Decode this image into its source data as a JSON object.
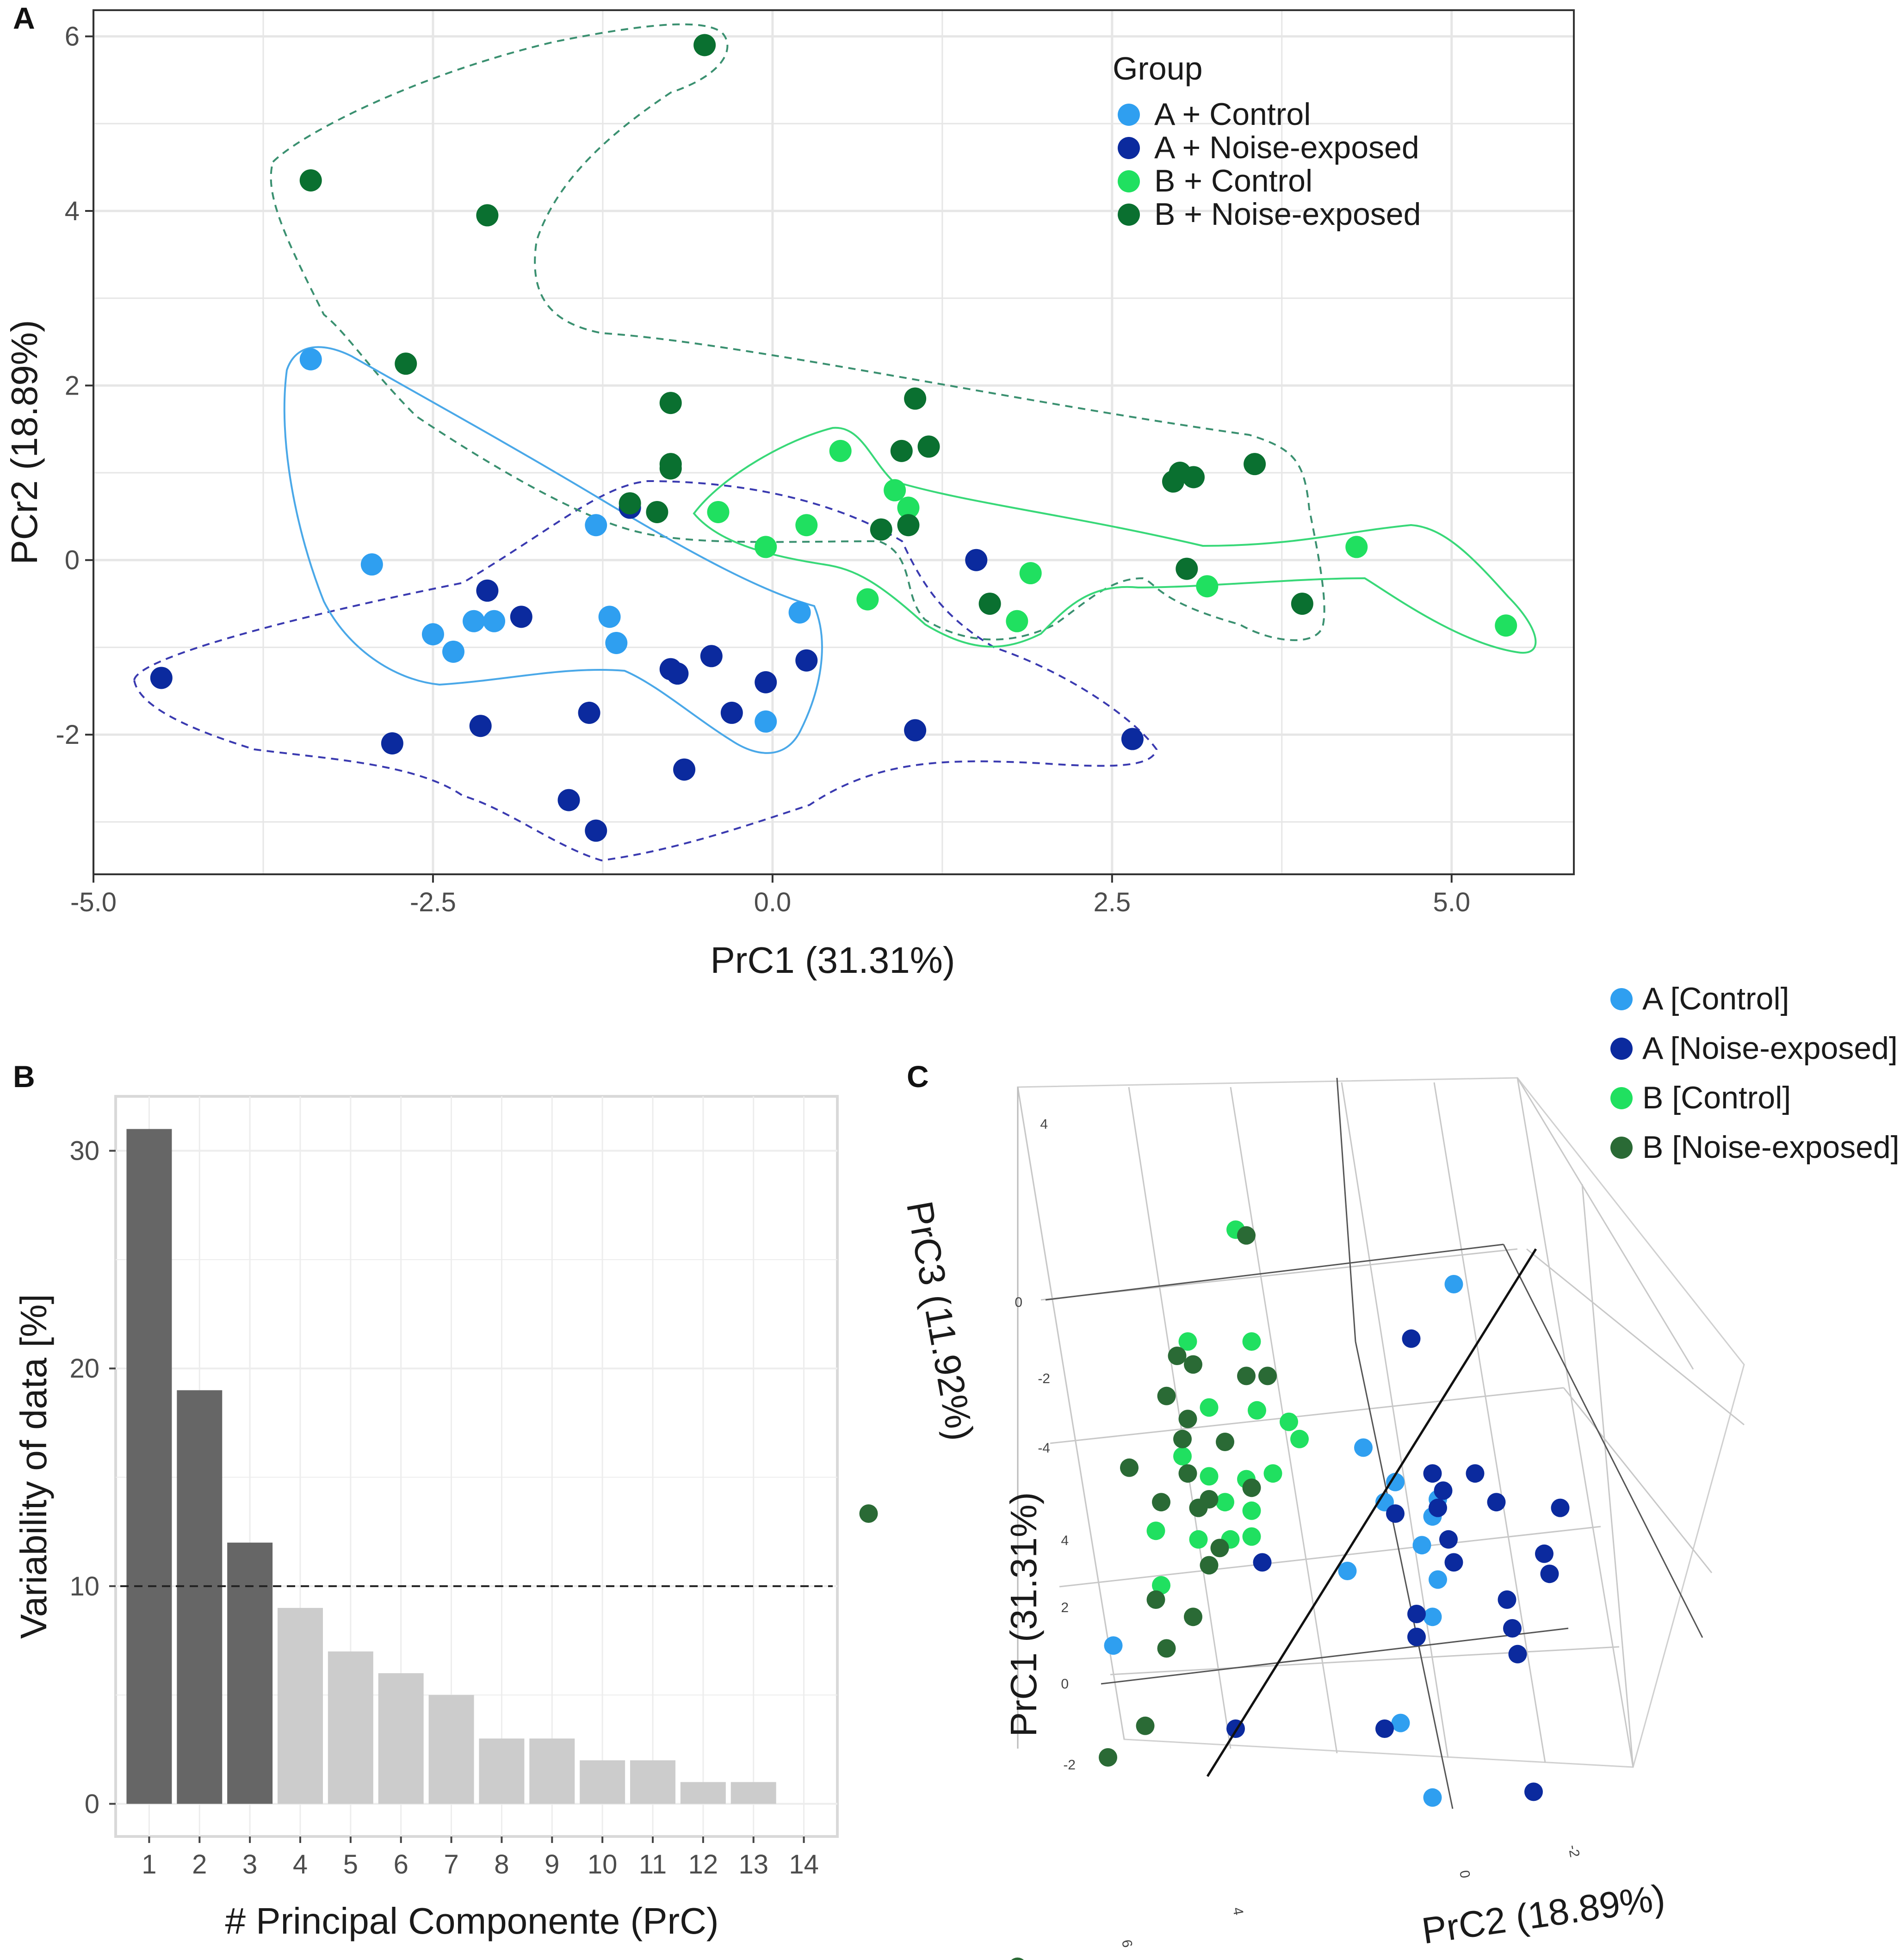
{
  "colors": {
    "a_control": "#2f9ff0",
    "a_noise": "#0b2a9e",
    "b_control": "#20e060",
    "b_noise": "#0a7030",
    "b_noise_3d": "#2a6a35",
    "bar_selected": "#666666",
    "bar_rest": "#cccccc",
    "grid": "#e6e6e6",
    "frame": "#333333"
  },
  "chart_data": [
    {
      "panel": "A",
      "type": "scatter",
      "xlabel": "PrC1 (31.31%)",
      "ylabel": "PCr2 (18.89%)",
      "xlim": [
        -5.0,
        5.9
      ],
      "ylim": [
        -3.6,
        6.3
      ],
      "xticks": [
        -5.0,
        -2.5,
        0.0,
        2.5,
        5.0
      ],
      "xtick_labels": [
        "-5.0",
        "-2.5",
        "0.0",
        "2.5",
        "5.0"
      ],
      "yticks": [
        -2,
        0,
        2,
        4,
        6
      ],
      "ytick_labels": [
        "-2",
        "0",
        "2",
        "4",
        "6"
      ],
      "legend_title": "Group",
      "legend_position": "top-right",
      "series": [
        {
          "name": "A + Control",
          "color_key": "a_control",
          "hull": "solid",
          "points": [
            [
              -3.4,
              2.3
            ],
            [
              -2.95,
              -0.05
            ],
            [
              -2.5,
              -0.85
            ],
            [
              -2.35,
              -1.05
            ],
            [
              -2.2,
              -0.7
            ],
            [
              -2.05,
              -0.7
            ],
            [
              -1.3,
              0.4
            ],
            [
              -1.2,
              -0.65
            ],
            [
              -1.15,
              -0.95
            ],
            [
              -0.05,
              -1.85
            ],
            [
              0.2,
              -0.6
            ]
          ]
        },
        {
          "name": "A + Noise-exposed",
          "color_key": "a_noise",
          "hull": "dashed",
          "points": [
            [
              -4.5,
              -1.35
            ],
            [
              -2.8,
              -2.1
            ],
            [
              -2.15,
              -1.9
            ],
            [
              -2.1,
              -0.35
            ],
            [
              -1.85,
              -0.65
            ],
            [
              -1.5,
              -2.75
            ],
            [
              -1.35,
              -1.75
            ],
            [
              -1.3,
              -3.1
            ],
            [
              -1.05,
              0.6
            ],
            [
              -0.75,
              -1.25
            ],
            [
              -0.7,
              -1.3
            ],
            [
              -0.65,
              -2.4
            ],
            [
              -0.45,
              -1.1
            ],
            [
              -0.3,
              -1.75
            ],
            [
              -0.05,
              -1.4
            ],
            [
              0.25,
              -1.15
            ],
            [
              1.05,
              -1.95
            ],
            [
              1.5,
              0.0
            ],
            [
              2.65,
              -2.05
            ]
          ]
        },
        {
          "name": "B + Control",
          "color_key": "b_control",
          "hull": "solid",
          "points": [
            [
              -0.4,
              0.55
            ],
            [
              -0.05,
              0.15
            ],
            [
              0.25,
              0.4
            ],
            [
              0.5,
              1.25
            ],
            [
              0.7,
              -0.45
            ],
            [
              0.9,
              0.8
            ],
            [
              1.0,
              0.6
            ],
            [
              1.8,
              -0.7
            ],
            [
              1.9,
              -0.15
            ],
            [
              3.2,
              -0.3
            ],
            [
              4.3,
              0.15
            ],
            [
              5.4,
              -0.75
            ]
          ]
        },
        {
          "name": "B + Noise-exposed",
          "color_key": "b_noise",
          "hull": "dashed",
          "points": [
            [
              -3.4,
              4.35
            ],
            [
              -2.1,
              3.95
            ],
            [
              -2.7,
              2.25
            ],
            [
              -0.5,
              5.9
            ],
            [
              -0.75,
              1.8
            ],
            [
              -0.75,
              1.05
            ],
            [
              -0.75,
              1.1
            ],
            [
              -1.05,
              0.65
            ],
            [
              -0.85,
              0.55
            ],
            [
              0.8,
              0.35
            ],
            [
              0.95,
              1.25
            ],
            [
              1.0,
              0.4
            ],
            [
              1.05,
              1.85
            ],
            [
              1.15,
              1.3
            ],
            [
              1.6,
              -0.5
            ],
            [
              2.95,
              0.9
            ],
            [
              3.0,
              1.0
            ],
            [
              3.05,
              -0.1
            ],
            [
              3.1,
              0.95
            ],
            [
              3.55,
              1.1
            ],
            [
              3.9,
              -0.5
            ]
          ]
        }
      ]
    },
    {
      "panel": "B",
      "type": "bar",
      "xlabel": "# Principal Componente (PrC)",
      "ylabel": "Variability of data [%]",
      "categories": [
        "1",
        "2",
        "3",
        "4",
        "5",
        "6",
        "7",
        "8",
        "9",
        "10",
        "11",
        "12",
        "13",
        "14"
      ],
      "values": [
        31,
        19,
        12,
        9,
        7,
        6,
        5,
        3,
        3,
        2,
        2,
        1,
        1,
        0
      ],
      "highlighted_count": 3,
      "ylim": [
        -1.5,
        32.5
      ],
      "yticks": [
        0,
        10,
        20,
        30
      ],
      "ytick_labels": [
        "0",
        "10",
        "20",
        "30"
      ],
      "reference_line": 10
    },
    {
      "panel": "C",
      "type": "scatter",
      "projection": "3d",
      "xlabel": "PrC2 (18.89%)",
      "ylabel": "PrC1 (31.31%)",
      "zlabel": "PrC3 (11.92%)",
      "z_tick_labels": [
        "4",
        "0",
        "-2",
        "-4"
      ],
      "y_tick_labels": [
        "4",
        "2",
        "0",
        "-2"
      ],
      "x_tick_labels": [
        "6",
        "4",
        "0",
        "-2"
      ],
      "legend_position": "top-right",
      "legend": [
        "A [Control]",
        "A [Noise-exposed]",
        "B [Control]",
        "B [Noise-exposed]"
      ],
      "series": [
        {
          "name": "A [Control]",
          "color_key": "a_control",
          "points": [
            [
              0.75,
              0.2
            ],
            [
              0.58,
              -0.37
            ],
            [
              0.64,
              -0.49
            ],
            [
              0.62,
              -0.56
            ],
            [
              0.69,
              -0.71
            ],
            [
              0.72,
              -0.55
            ],
            [
              0.71,
              -0.61
            ],
            [
              0.72,
              -0.83
            ],
            [
              0.55,
              -0.8
            ],
            [
              0.71,
              -0.96
            ],
            [
              0.11,
              -1.06
            ],
            [
              0.71,
              -1.59
            ],
            [
              0.65,
              -1.33
            ]
          ]
        },
        {
          "name": "A [Noise-exposed]",
          "color_key": "a_noise",
          "points": [
            [
              0.67,
              0.01
            ],
            [
              0.71,
              -0.46
            ],
            [
              0.73,
              -0.52
            ],
            [
              0.79,
              -0.46
            ],
            [
              0.72,
              -0.58
            ],
            [
              0.83,
              -0.56
            ],
            [
              0.64,
              -0.6
            ],
            [
              0.95,
              -0.58
            ],
            [
              0.92,
              -0.74
            ],
            [
              0.93,
              -0.81
            ],
            [
              0.74,
              -0.69
            ],
            [
              0.75,
              -0.77
            ],
            [
              0.85,
              -0.9
            ],
            [
              0.68,
              -0.95
            ],
            [
              0.86,
              -1.0
            ],
            [
              0.68,
              -1.03
            ],
            [
              0.87,
              -1.09
            ],
            [
              0.34,
              -1.35
            ],
            [
              0.62,
              -1.35
            ],
            [
              0.9,
              -1.57
            ],
            [
              0.39,
              -0.77
            ]
          ]
        },
        {
          "name": "B [Control]",
          "color_key": "b_control",
          "points": [
            [
              0.34,
              0.39
            ],
            [
              0.25,
              0.0
            ],
            [
              0.37,
              0.0
            ],
            [
              0.29,
              -0.23
            ],
            [
              0.38,
              -0.24
            ],
            [
              0.44,
              -0.28
            ],
            [
              0.46,
              -0.34
            ],
            [
              0.24,
              -0.4
            ],
            [
              0.29,
              -0.47
            ],
            [
              0.36,
              -0.48
            ],
            [
              0.41,
              -0.46
            ],
            [
              0.19,
              -0.66
            ],
            [
              0.27,
              -0.69
            ],
            [
              0.33,
              -0.69
            ],
            [
              0.37,
              -0.68
            ],
            [
              0.37,
              -0.59
            ],
            [
              0.32,
              -0.56
            ],
            [
              0.2,
              -0.85
            ]
          ]
        },
        {
          "name": "B [Noise-exposed]",
          "color_key": "b_noise_3d",
          "points": [
            [
              -0.35,
              -0.6
            ],
            [
              0.36,
              0.37
            ],
            [
              0.23,
              -0.05
            ],
            [
              0.26,
              -0.08
            ],
            [
              0.36,
              -0.12
            ],
            [
              0.4,
              -0.12
            ],
            [
              0.21,
              -0.19
            ],
            [
              0.25,
              -0.27
            ],
            [
              0.24,
              -0.34
            ],
            [
              0.32,
              -0.35
            ],
            [
              0.14,
              -0.44
            ],
            [
              0.25,
              -0.46
            ],
            [
              0.2,
              -0.56
            ],
            [
              0.27,
              -0.58
            ],
            [
              0.31,
              -0.72
            ],
            [
              0.29,
              -0.78
            ],
            [
              0.19,
              -0.9
            ],
            [
              0.26,
              -0.96
            ],
            [
              0.21,
              -1.07
            ],
            [
              0.17,
              -1.34
            ],
            [
              0.1,
              -1.45
            ],
            [
              -0.07,
              -2.18
            ],
            [
              0.29,
              -0.55
            ],
            [
              0.37,
              -0.51
            ]
          ]
        }
      ]
    }
  ]
}
